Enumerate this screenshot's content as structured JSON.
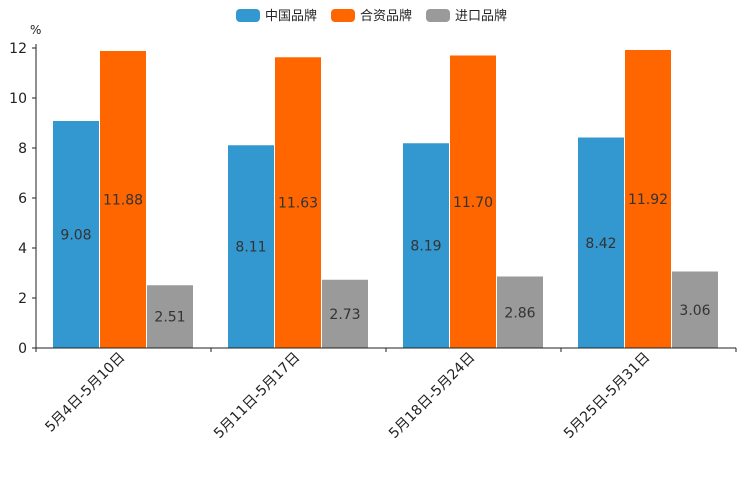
{
  "chart_data": {
    "type": "bar",
    "ylabel": "%",
    "ylim": [
      0,
      12
    ],
    "yticks": [
      "0",
      "2",
      "4",
      "6",
      "8",
      "10",
      "12"
    ],
    "categories": [
      "5月4日-5月10日",
      "5月11日-5月17日",
      "5月18日-5月24日",
      "5月25日-5月31日"
    ],
    "series": [
      {
        "name": "中国品牌",
        "color": "#3498d0",
        "values": [
          9.08,
          8.11,
          8.19,
          8.42
        ],
        "labels": [
          "9.08",
          "8.11",
          "8.19",
          "8.42"
        ]
      },
      {
        "name": "合资品牌",
        "color": "#ff6600",
        "values": [
          11.88,
          11.63,
          11.7,
          11.92
        ],
        "labels": [
          "11.88",
          "11.63",
          "11.70",
          "11.92"
        ]
      },
      {
        "name": "进口品牌",
        "color": "#9a9a9a",
        "values": [
          2.51,
          2.73,
          2.86,
          3.06
        ],
        "labels": [
          "2.51",
          "2.73",
          "2.86",
          "3.06"
        ]
      }
    ],
    "legend_position": "top-center"
  }
}
